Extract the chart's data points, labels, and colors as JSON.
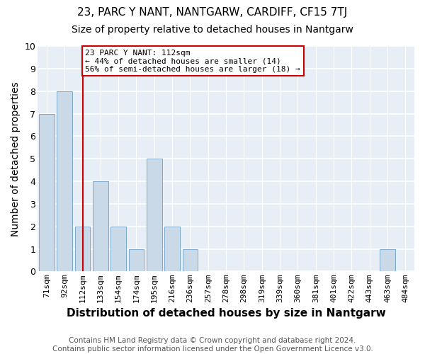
{
  "title": "23, PARC Y NANT, NANTGARW, CARDIFF, CF15 7TJ",
  "subtitle": "Size of property relative to detached houses in Nantgarw",
  "xlabel": "Distribution of detached houses by size in Nantgarw",
  "ylabel": "Number of detached properties",
  "footer1": "Contains HM Land Registry data © Crown copyright and database right 2024.",
  "footer2": "Contains public sector information licensed under the Open Government Licence v3.0.",
  "bins": [
    "71sqm",
    "92sqm",
    "112sqm",
    "133sqm",
    "154sqm",
    "174sqm",
    "195sqm",
    "216sqm",
    "236sqm",
    "257sqm",
    "278sqm",
    "298sqm",
    "319sqm",
    "339sqm",
    "360sqm",
    "381sqm",
    "401sqm",
    "422sqm",
    "443sqm",
    "463sqm",
    "484sqm"
  ],
  "values": [
    7,
    8,
    2,
    4,
    2,
    1,
    5,
    2,
    1,
    0,
    0,
    0,
    0,
    0,
    0,
    0,
    0,
    0,
    0,
    1,
    0
  ],
  "bar_color": "#c9d9e8",
  "bar_edgecolor": "#7faacc",
  "marker_bin_index": 2,
  "marker_color": "#cc0000",
  "annotation_text": "23 PARC Y NANT: 112sqm\n← 44% of detached houses are smaller (14)\n56% of semi-detached houses are larger (18) →",
  "annotation_box_color": "#ffffff",
  "annotation_box_edgecolor": "#cc0000",
  "ylim": [
    0,
    10
  ],
  "yticks": [
    0,
    1,
    2,
    3,
    4,
    5,
    6,
    7,
    8,
    9,
    10
  ],
  "bg_color": "#e8eef5",
  "grid_color": "#ffffff",
  "title_fontsize": 11,
  "subtitle_fontsize": 10,
  "axis_label_fontsize": 10,
  "tick_fontsize": 8,
  "footer_fontsize": 7.5
}
